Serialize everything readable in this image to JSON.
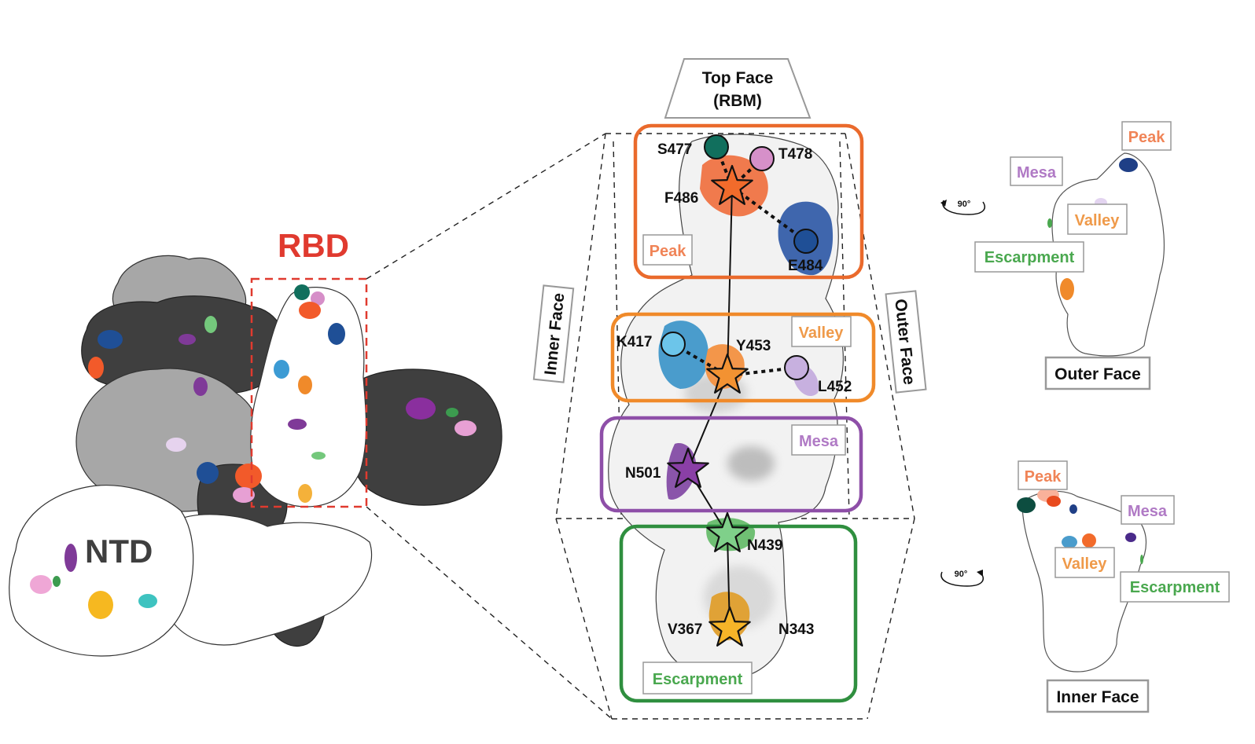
{
  "left_panel": {
    "rbd_label": "RBD",
    "ntd_label": "NTD"
  },
  "top_face": {
    "line1": "Top Face",
    "line2": "(RBM)"
  },
  "side_faces": {
    "inner": "Inner Face",
    "outer": "Outer Face"
  },
  "regions": {
    "peak": "Peak",
    "valley": "Valley",
    "mesa": "Mesa",
    "escarpment": "Escarpment"
  },
  "residues": {
    "s477": "S477",
    "t478": "T478",
    "f486": "F486",
    "e484": "E484",
    "k417": "K417",
    "y453": "Y453",
    "l452": "L452",
    "n501": "N501",
    "n439": "N439",
    "v367": "V367",
    "n343": "N343"
  },
  "right_outer": {
    "peak": "Peak",
    "mesa": "Mesa",
    "valley": "Valley",
    "escarpment": "Escarpment",
    "face": "Outer Face",
    "rotation": "90°"
  },
  "right_inner": {
    "peak": "Peak",
    "mesa": "Mesa",
    "valley": "Valley",
    "escarpment": "Escarpment",
    "face": "Inner Face",
    "rotation": "90°"
  },
  "colors": {
    "peak_box": "#ea6a2c",
    "valley_box": "#f08a2a",
    "mesa_box": "#8e4fa8",
    "escarpment_box": "#2f8f3f",
    "rbd_red": "#e03a2f",
    "peak_text": "#f08457",
    "valley_text": "#ef9a4a",
    "mesa_text": "#b07ac5",
    "escarpment_text": "#4aa84f",
    "teal": "#116f5d",
    "pink": "#d68ec8",
    "blue": "#1f4f96",
    "lightblue": "#55b6e0",
    "lavender": "#c7b0df",
    "purple": "#7f3a98",
    "green": "#74c87c",
    "gold": "#f4b13a",
    "dark": "#3f3f3f",
    "grey": "#a7a7a7"
  }
}
